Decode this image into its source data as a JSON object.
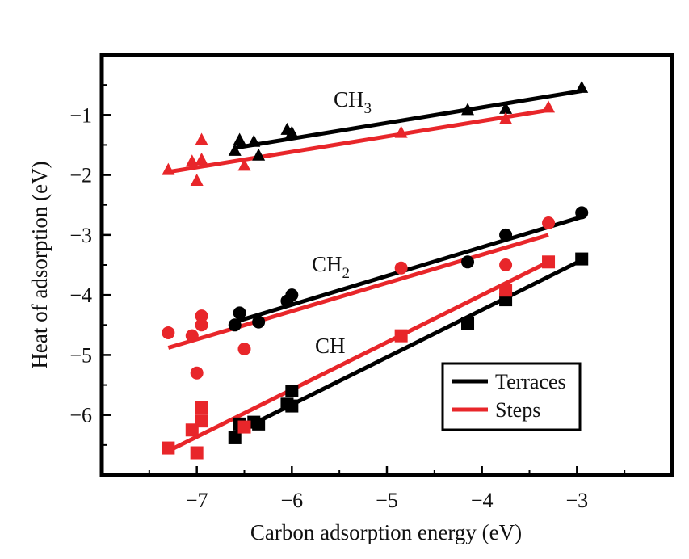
{
  "chart_data": {
    "type": "scatter",
    "title": "",
    "xlabel": "Carbon adsorption energy (eV)",
    "ylabel": "Heat of adsorption (eV)",
    "xlim": [
      -8.0,
      -2.0
    ],
    "ylim": [
      -7.0,
      0.0
    ],
    "x_ticks": [
      -7,
      -6,
      -5,
      -4,
      -3
    ],
    "y_ticks": [
      -1,
      -2,
      -3,
      -4,
      -5,
      -6
    ],
    "x_tick_labels": [
      "−7",
      "−6",
      "−5",
      "−4",
      "−3"
    ],
    "y_tick_labels": [
      "−1",
      "−2",
      "−3",
      "−4",
      "−5",
      "−6"
    ],
    "grid": false,
    "legend_position": "bottom-right",
    "legend": [
      {
        "label": "Terraces",
        "color": "#000000"
      },
      {
        "label": "Steps",
        "color": "#e8262a"
      }
    ],
    "groups": [
      {
        "label": "CH",
        "label_sub": "3",
        "marker": "triangle",
        "series": [
          {
            "name": "Terraces",
            "color": "#000000",
            "points": [
              [
                -6.6,
                -1.6
              ],
              [
                -6.55,
                -1.42
              ],
              [
                -6.4,
                -1.45
              ],
              [
                -6.35,
                -1.68
              ],
              [
                -6.05,
                -1.25
              ],
              [
                -6.0,
                -1.3
              ],
              [
                -4.15,
                -0.92
              ],
              [
                -3.75,
                -0.9
              ],
              [
                -2.95,
                -0.55
              ]
            ],
            "fit": [
              [
                -6.6,
                -1.55
              ],
              [
                -2.95,
                -0.6
              ]
            ]
          },
          {
            "name": "Steps",
            "color": "#e8262a",
            "points": [
              [
                -7.3,
                -1.92
              ],
              [
                -7.05,
                -1.78
              ],
              [
                -7.0,
                -2.1
              ],
              [
                -6.95,
                -1.75
              ],
              [
                -6.95,
                -1.42
              ],
              [
                -6.5,
                -1.85
              ],
              [
                -4.85,
                -1.3
              ],
              [
                -3.75,
                -1.07
              ],
              [
                -3.3,
                -0.88
              ]
            ],
            "fit": [
              [
                -7.3,
                -1.95
              ],
              [
                -3.3,
                -0.92
              ]
            ]
          }
        ]
      },
      {
        "label": "CH",
        "label_sub": "2",
        "marker": "circle",
        "series": [
          {
            "name": "Terraces",
            "color": "#000000",
            "points": [
              [
                -6.6,
                -4.5
              ],
              [
                -6.55,
                -4.3
              ],
              [
                -6.35,
                -4.45
              ],
              [
                -6.05,
                -4.1
              ],
              [
                -6.0,
                -4.0
              ],
              [
                -4.15,
                -3.45
              ],
              [
                -3.75,
                -3.0
              ],
              [
                -2.95,
                -2.63
              ]
            ],
            "fit": [
              [
                -6.6,
                -4.45
              ],
              [
                -2.95,
                -2.7
              ]
            ]
          },
          {
            "name": "Steps",
            "color": "#e8262a",
            "points": [
              [
                -7.3,
                -4.63
              ],
              [
                -7.05,
                -4.68
              ],
              [
                -7.0,
                -5.3
              ],
              [
                -6.95,
                -4.5
              ],
              [
                -6.95,
                -4.35
              ],
              [
                -6.5,
                -4.9
              ],
              [
                -4.85,
                -3.55
              ],
              [
                -3.75,
                -3.5
              ],
              [
                -3.3,
                -2.8
              ]
            ],
            "fit": [
              [
                -7.3,
                -4.88
              ],
              [
                -3.3,
                -3.0
              ]
            ]
          }
        ]
      },
      {
        "label": "CH",
        "label_sub": "",
        "marker": "square",
        "series": [
          {
            "name": "Terraces",
            "color": "#000000",
            "points": [
              [
                -6.6,
                -6.38
              ],
              [
                -6.55,
                -6.15
              ],
              [
                -6.4,
                -6.12
              ],
              [
                -6.35,
                -6.15
              ],
              [
                -6.05,
                -5.82
              ],
              [
                -6.0,
                -5.85
              ],
              [
                -6.0,
                -5.6
              ],
              [
                -4.15,
                -4.48
              ],
              [
                -3.75,
                -4.08
              ],
              [
                -2.95,
                -3.4
              ]
            ],
            "fit": [
              [
                -6.6,
                -6.3
              ],
              [
                -2.95,
                -3.42
              ]
            ]
          },
          {
            "name": "Steps",
            "color": "#e8262a",
            "points": [
              [
                -7.3,
                -6.55
              ],
              [
                -7.05,
                -6.25
              ],
              [
                -7.0,
                -6.63
              ],
              [
                -6.95,
                -6.1
              ],
              [
                -6.95,
                -5.88
              ],
              [
                -6.5,
                -6.2
              ],
              [
                -4.85,
                -4.68
              ],
              [
                -3.75,
                -3.92
              ],
              [
                -3.3,
                -3.45
              ]
            ],
            "fit": [
              [
                -7.3,
                -6.6
              ],
              [
                -3.3,
                -3.45
              ]
            ]
          }
        ]
      }
    ]
  }
}
